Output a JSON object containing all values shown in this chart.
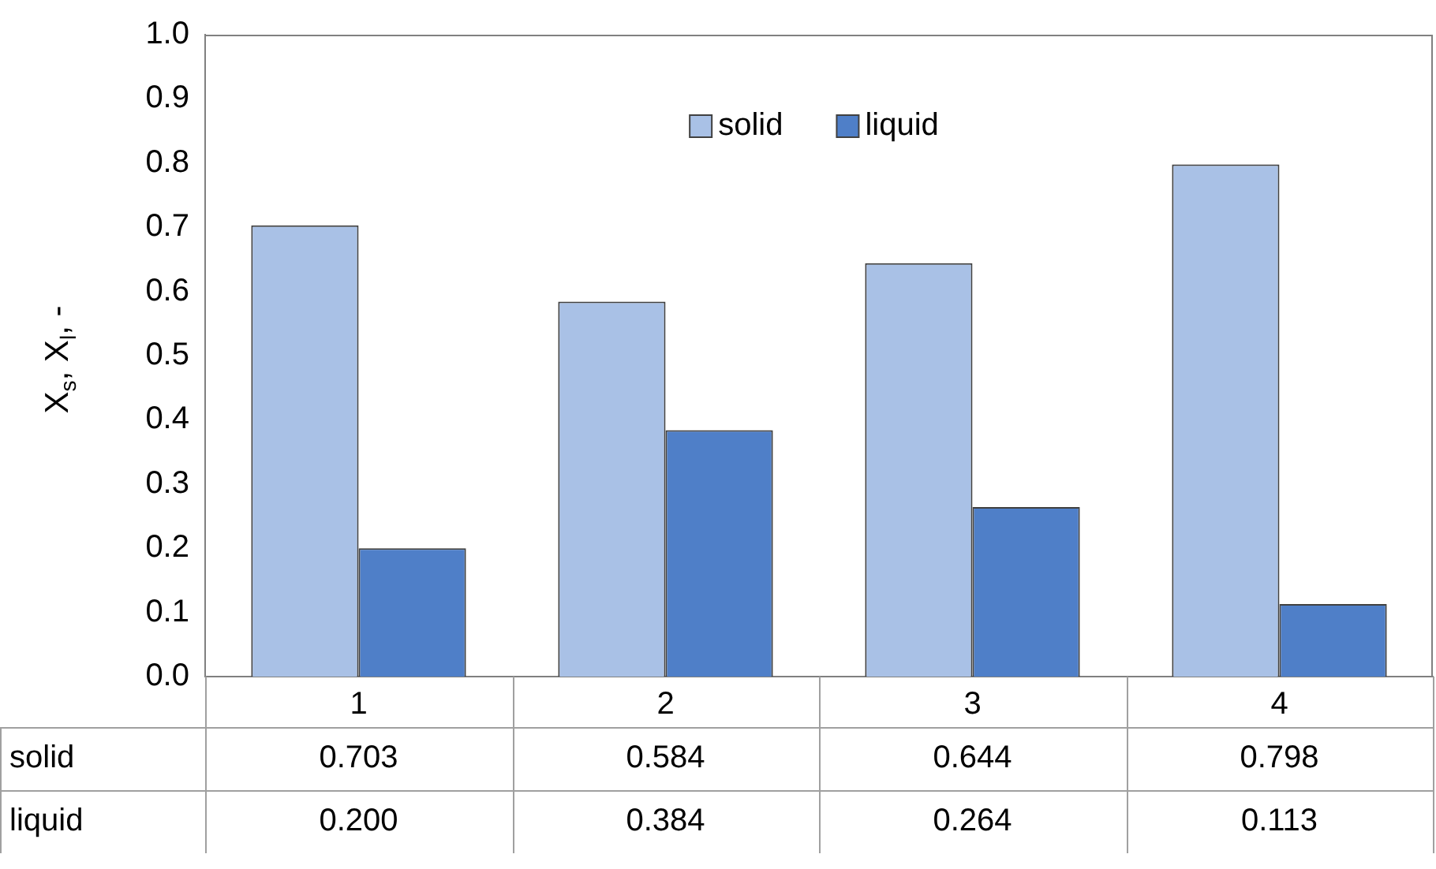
{
  "chart_data": {
    "type": "bar",
    "ylabel": "X$_{s}$, X$_{l}$, -",
    "categories": [
      "1",
      "2",
      "3",
      "4"
    ],
    "series": [
      {
        "name": "solid",
        "color": "#a9c1e6",
        "values": [
          0.703,
          0.584,
          0.644,
          0.798
        ],
        "value_labels": [
          "0.703",
          "0.584",
          "0.644",
          "0.798"
        ]
      },
      {
        "name": "liquid",
        "color": "#4f7fc8",
        "values": [
          0.2,
          0.384,
          0.264,
          0.113
        ],
        "value_labels": [
          "0.200",
          "0.384",
          "0.264",
          "0.113"
        ]
      }
    ],
    "ylim": [
      0,
      1
    ],
    "yticks": [
      {
        "value": 0,
        "label": "0.0"
      },
      {
        "value": 0.1,
        "label": "0.1"
      },
      {
        "value": 0.2,
        "label": "0.2"
      },
      {
        "value": 0.3,
        "label": "0.3"
      },
      {
        "value": 0.4,
        "label": "0.4"
      },
      {
        "value": 0.5,
        "label": "0.5"
      },
      {
        "value": 0.6,
        "label": "0.6"
      },
      {
        "value": 0.7,
        "label": "0.7"
      },
      {
        "value": 0.8,
        "label": "0.8"
      },
      {
        "value": 0.9,
        "label": "0.9"
      },
      {
        "value": 1,
        "label": "1.0"
      }
    ],
    "grid": false,
    "legend": "top"
  }
}
